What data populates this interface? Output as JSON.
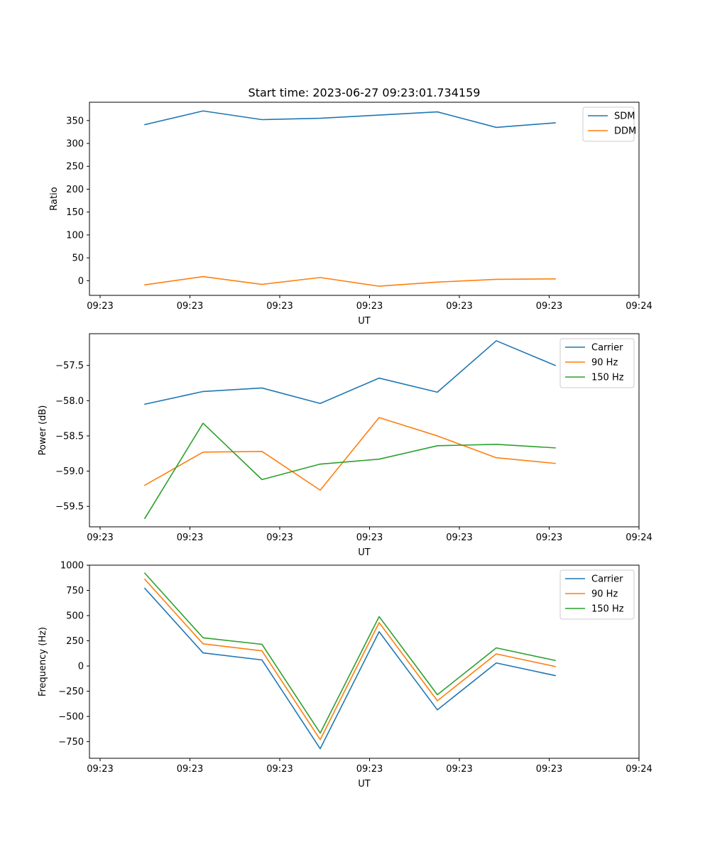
{
  "title": "Start time: 2023-06-27 09:23:01.734159",
  "colors": {
    "blue": "#1f77b4",
    "orange": "#ff7f0e",
    "green": "#2ca02c"
  },
  "chart_data": [
    {
      "type": "line",
      "title": "Start time: 2023-06-27 09:23:01.734159",
      "xlabel": "UT",
      "ylabel": "Ratio",
      "x_tick_labels": [
        "09:23",
        "09:23",
        "09:23",
        "09:23",
        "09:23",
        "09:23",
        "09:24"
      ],
      "y_ticks": [
        0,
        50,
        100,
        150,
        200,
        250,
        300,
        350
      ],
      "ylim": [
        -32,
        390
      ],
      "legend_position": "top-right",
      "grid": false,
      "series": [
        {
          "name": "SDM",
          "color": "#1f77b4",
          "values": [
            341,
            371,
            352,
            355,
            362,
            369,
            335,
            345
          ]
        },
        {
          "name": "DDM",
          "color": "#ff7f0e",
          "values": [
            -9,
            9,
            -8,
            7,
            -12,
            -3,
            3,
            4
          ]
        }
      ]
    },
    {
      "type": "line",
      "title": "",
      "xlabel": "UT",
      "ylabel": "Power (dB)",
      "x_tick_labels": [
        "09:23",
        "09:23",
        "09:23",
        "09:23",
        "09:23",
        "09:23",
        "09:24"
      ],
      "y_ticks": [
        -59.5,
        -59.0,
        -58.5,
        -58.0,
        -57.5
      ],
      "y_tick_labels": [
        "−59.5",
        "−59.0",
        "−58.5",
        "−58.0",
        "−57.5"
      ],
      "ylim": [
        -59.79,
        -57.05
      ],
      "legend_position": "top-right",
      "grid": false,
      "series": [
        {
          "name": "Carrier",
          "color": "#1f77b4",
          "values": [
            -58.05,
            -57.87,
            -57.82,
            -58.04,
            -57.68,
            -57.88,
            -57.15,
            -57.5
          ]
        },
        {
          "name": "90 Hz",
          "color": "#ff7f0e",
          "values": [
            -59.2,
            -58.73,
            -58.72,
            -59.27,
            -58.24,
            -58.5,
            -58.81,
            -58.89
          ]
        },
        {
          "name": "150 Hz",
          "color": "#2ca02c",
          "values": [
            -59.67,
            -58.32,
            -59.12,
            -58.9,
            -58.83,
            -58.64,
            -58.62,
            -58.67
          ]
        }
      ]
    },
    {
      "type": "line",
      "title": "",
      "xlabel": "UT",
      "ylabel": "Frequency (Hz)",
      "x_tick_labels": [
        "09:23",
        "09:23",
        "09:23",
        "09:23",
        "09:23",
        "09:23",
        "09:24"
      ],
      "y_ticks": [
        -750,
        -500,
        -250,
        0,
        250,
        500,
        750,
        1000
      ],
      "y_tick_labels": [
        "−750",
        "−500",
        "−250",
        "0",
        "250",
        "500",
        "750",
        "1000"
      ],
      "ylim": [
        -915,
        1000
      ],
      "legend_position": "top-right",
      "grid": false,
      "series": [
        {
          "name": "Carrier",
          "color": "#1f77b4",
          "values": [
            770,
            130,
            60,
            -820,
            340,
            -435,
            30,
            -95
          ]
        },
        {
          "name": "90 Hz",
          "color": "#ff7f0e",
          "values": [
            860,
            220,
            150,
            -730,
            430,
            -345,
            120,
            -5
          ]
        },
        {
          "name": "150 Hz",
          "color": "#2ca02c",
          "values": [
            920,
            280,
            215,
            -665,
            490,
            -285,
            180,
            55
          ]
        }
      ]
    }
  ]
}
